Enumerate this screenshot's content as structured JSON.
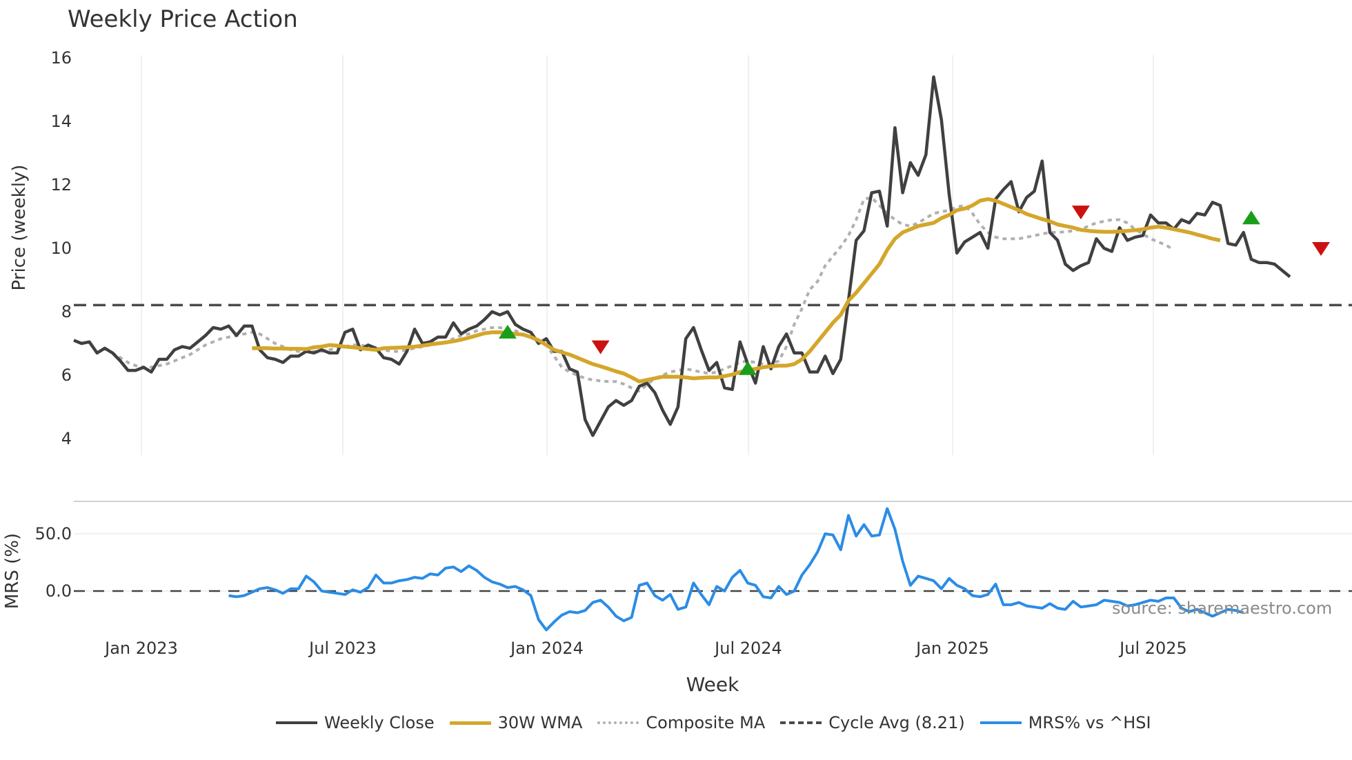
{
  "title": "Weekly Price Action",
  "source_label": "source: sharemaestro.com",
  "colors": {
    "close": "#404040",
    "wma": "#d4a62a",
    "composite": "#b0b0b0",
    "cycle": "#4a4a4a",
    "mrs": "#2b8ce6",
    "buy_marker": "#1a9e1a",
    "sell_marker": "#cc1111",
    "grid": "#ececec"
  },
  "legend": [
    {
      "key": "close",
      "label": "Weekly Close",
      "style": "solid"
    },
    {
      "key": "wma",
      "label": "30W WMA",
      "style": "solid"
    },
    {
      "key": "composite",
      "label": "Composite MA",
      "style": "dotted"
    },
    {
      "key": "cycle",
      "label": "Cycle Avg (8.21)",
      "style": "dashed"
    },
    {
      "key": "mrs",
      "label": "MRS% vs ^HSI",
      "style": "solid"
    }
  ],
  "chart_data": [
    {
      "type": "line",
      "title": "Weekly Price Action",
      "xlabel": "Week",
      "ylabel": "Price (weekly)",
      "ylim": [
        3.5,
        16.3
      ],
      "yticks": [
        4,
        6,
        8,
        10,
        12,
        14,
        16
      ],
      "xticks": [
        "Jan 2023",
        "Jul 2023",
        "Jan 2024",
        "Jul 2024",
        "Jan 2025",
        "Jul 2025"
      ],
      "grid": true,
      "legend_position": "bottom",
      "x_start_week_offset": -8.7,
      "series": [
        {
          "name": "Weekly Close",
          "start_index": 0,
          "values": [
            7.1,
            7.0,
            7.05,
            6.7,
            6.85,
            6.7,
            6.45,
            6.15,
            6.15,
            6.25,
            6.1,
            6.5,
            6.5,
            6.8,
            6.9,
            6.85,
            7.05,
            7.25,
            7.5,
            7.45,
            7.55,
            7.25,
            7.55,
            7.55,
            6.8,
            6.55,
            6.5,
            6.4,
            6.6,
            6.6,
            6.75,
            6.7,
            6.8,
            6.7,
            6.7,
            7.35,
            7.45,
            6.8,
            6.95,
            6.85,
            6.55,
            6.5,
            6.35,
            6.75,
            7.45,
            7.0,
            7.05,
            7.2,
            7.2,
            7.65,
            7.3,
            7.45,
            7.55,
            7.75,
            8.0,
            7.9,
            8.0,
            7.6,
            7.45,
            7.35,
            7.0,
            7.15,
            6.75,
            6.75,
            6.2,
            6.1,
            4.6,
            4.1,
            4.55,
            5.0,
            5.2,
            5.05,
            5.2,
            5.65,
            5.75,
            5.45,
            4.9,
            4.45,
            5.0,
            7.15,
            7.5,
            6.8,
            6.15,
            6.4,
            5.6,
            5.55,
            7.05,
            6.35,
            5.75,
            6.9,
            6.2,
            6.9,
            7.3,
            6.7,
            6.7,
            6.1,
            6.1,
            6.6,
            6.05,
            6.5,
            8.35,
            10.25,
            10.55,
            11.75,
            11.8,
            10.7,
            13.8,
            11.75,
            12.7,
            12.3,
            12.95,
            15.4,
            14.05,
            11.7,
            9.85,
            10.2,
            10.35,
            10.5,
            10.0,
            11.55,
            11.85,
            12.1,
            11.15,
            11.6,
            11.8,
            12.75,
            10.5,
            10.25,
            9.5,
            9.3,
            9.45,
            9.55,
            10.3,
            10.0,
            9.9,
            10.65,
            10.25,
            10.35,
            10.4,
            11.05,
            10.8,
            10.8,
            10.6,
            10.9,
            10.8,
            11.1,
            11.05,
            11.45,
            11.35,
            10.15,
            10.1,
            10.5,
            9.65,
            9.55,
            9.55,
            9.5,
            9.3,
            9.1
          ]
        },
        {
          "name": "30W WMA",
          "start_index": 23,
          "values": [
            6.85,
            6.85,
            6.85,
            6.84,
            6.84,
            6.83,
            6.83,
            6.82,
            6.88,
            6.9,
            6.95,
            6.93,
            6.9,
            6.88,
            6.85,
            6.82,
            6.8,
            6.85,
            6.86,
            6.87,
            6.88,
            6.9,
            6.93,
            6.97,
            7.0,
            7.03,
            7.07,
            7.12,
            7.18,
            7.25,
            7.32,
            7.35,
            7.35,
            7.33,
            7.3,
            7.28,
            7.2,
            7.1,
            6.95,
            6.8,
            6.72,
            6.65,
            6.55,
            6.45,
            6.35,
            6.28,
            6.2,
            6.12,
            6.05,
            5.93,
            5.8,
            5.85,
            5.9,
            5.95,
            5.95,
            5.95,
            5.93,
            5.9,
            5.92,
            5.93,
            5.93,
            5.97,
            6.02,
            6.1,
            6.15,
            6.2,
            6.25,
            6.28,
            6.3,
            6.3,
            6.35,
            6.5,
            6.75,
            7.05,
            7.35,
            7.65,
            7.9,
            8.35,
            8.6,
            8.9,
            9.2,
            9.5,
            9.95,
            10.3,
            10.5,
            10.6,
            10.7,
            10.75,
            10.8,
            10.95,
            11.05,
            11.2,
            11.25,
            11.35,
            11.5,
            11.55,
            11.5,
            11.4,
            11.3,
            11.2,
            11.08,
            11.0,
            10.92,
            10.85,
            10.75,
            10.7,
            10.65,
            10.58,
            10.55,
            10.53,
            10.52,
            10.52,
            10.53,
            10.55,
            10.57,
            10.6,
            10.65,
            10.68,
            10.65,
            10.6,
            10.55,
            10.5,
            10.43,
            10.37,
            10.3,
            10.25
          ]
        },
        {
          "name": "Composite MA",
          "start_index": 4,
          "values": [
            6.85,
            6.7,
            6.55,
            6.4,
            6.3,
            6.25,
            6.25,
            6.3,
            6.35,
            6.45,
            6.55,
            6.65,
            6.8,
            6.95,
            7.05,
            7.15,
            7.2,
            7.25,
            7.3,
            7.35,
            7.3,
            7.15,
            7.0,
            6.9,
            6.8,
            6.75,
            6.75,
            6.75,
            6.75,
            6.8,
            6.85,
            6.9,
            6.95,
            6.95,
            6.9,
            6.85,
            6.8,
            6.75,
            6.75,
            6.8,
            6.85,
            6.9,
            6.95,
            7.0,
            7.05,
            7.15,
            7.25,
            7.3,
            7.4,
            7.45,
            7.5,
            7.5,
            7.45,
            7.4,
            7.3,
            7.2,
            7.1,
            6.95,
            6.6,
            6.25,
            6.1,
            6.0,
            5.9,
            5.85,
            5.82,
            5.8,
            5.8,
            5.72,
            5.6,
            5.5,
            5.7,
            5.9,
            6.0,
            6.1,
            6.15,
            6.2,
            6.15,
            6.1,
            6.05,
            6.1,
            6.2,
            6.3,
            6.4,
            6.45,
            6.4,
            6.35,
            6.35,
            6.45,
            6.9,
            7.6,
            8.1,
            8.7,
            8.95,
            9.45,
            9.75,
            10.05,
            10.4,
            10.9,
            11.55,
            11.6,
            11.35,
            11.1,
            10.9,
            10.75,
            10.7,
            10.8,
            10.95,
            11.1,
            11.15,
            11.2,
            11.3,
            11.35,
            11.1,
            10.75,
            10.5,
            10.35,
            10.3,
            10.3,
            10.3,
            10.35,
            10.4,
            10.45,
            10.5,
            10.5,
            10.52,
            10.55,
            10.6,
            10.7,
            10.8,
            10.85,
            10.9,
            10.9,
            10.8,
            10.6,
            10.45,
            10.3,
            10.2,
            10.1,
            9.95
          ]
        },
        {
          "name": "Cycle Avg (8.21)",
          "constant": 8.21
        }
      ],
      "markers": [
        {
          "type": "buy",
          "index": 56,
          "value": 7.35
        },
        {
          "type": "sell",
          "index": 68,
          "value": 6.9
        },
        {
          "type": "buy",
          "index": 87,
          "value": 6.2
        },
        {
          "type": "sell",
          "index": 130,
          "value": 11.15
        },
        {
          "type": "buy",
          "index": 152,
          "value": 10.95
        },
        {
          "type": "sell",
          "index": 161,
          "value": 10.0
        }
      ]
    },
    {
      "type": "line",
      "xlabel": "Week",
      "ylabel": "MRS (%)",
      "ylim": [
        -40,
        75
      ],
      "yticks": [
        0.0,
        50.0
      ],
      "ytick_labels": [
        "0.0",
        "50.0"
      ],
      "grid": true,
      "zero_line": "dashed",
      "series": [
        {
          "name": "MRS% vs ^HSI",
          "start_index": 20,
          "values": [
            -4,
            -5,
            -4,
            -1,
            2,
            3,
            1,
            -2,
            2,
            2,
            13,
            8,
            0,
            -1,
            -2,
            -3,
            1,
            -1,
            3,
            14,
            7,
            7,
            9,
            10,
            12,
            11,
            15,
            14,
            20,
            21,
            17,
            22,
            18,
            12,
            8,
            6,
            3,
            4,
            1,
            -4,
            -25,
            -34,
            -27,
            -21,
            -18,
            -19,
            -17,
            -10,
            -8,
            -14,
            -22,
            -26,
            -23,
            5,
            7,
            -4,
            -8,
            -3,
            -16,
            -14,
            7,
            -3,
            -12,
            4,
            0,
            12,
            18,
            7,
            5,
            -5,
            -6,
            4,
            -3,
            0,
            14,
            23,
            34,
            50,
            49,
            36,
            66,
            48,
            58,
            48,
            49,
            72,
            54,
            26,
            5,
            13,
            11,
            9,
            2,
            11,
            5,
            2,
            -4,
            -5,
            -3,
            6,
            -12,
            -12,
            -10,
            -13,
            -14,
            -15,
            -11,
            -15,
            -16,
            -9,
            -14,
            -13,
            -12,
            -8,
            -9,
            -10,
            -13,
            -12,
            -10,
            -8,
            -9,
            -6,
            -6,
            -15,
            -18,
            -16,
            -19,
            -22,
            -19,
            -16,
            -17,
            -19
          ]
        }
      ]
    }
  ]
}
